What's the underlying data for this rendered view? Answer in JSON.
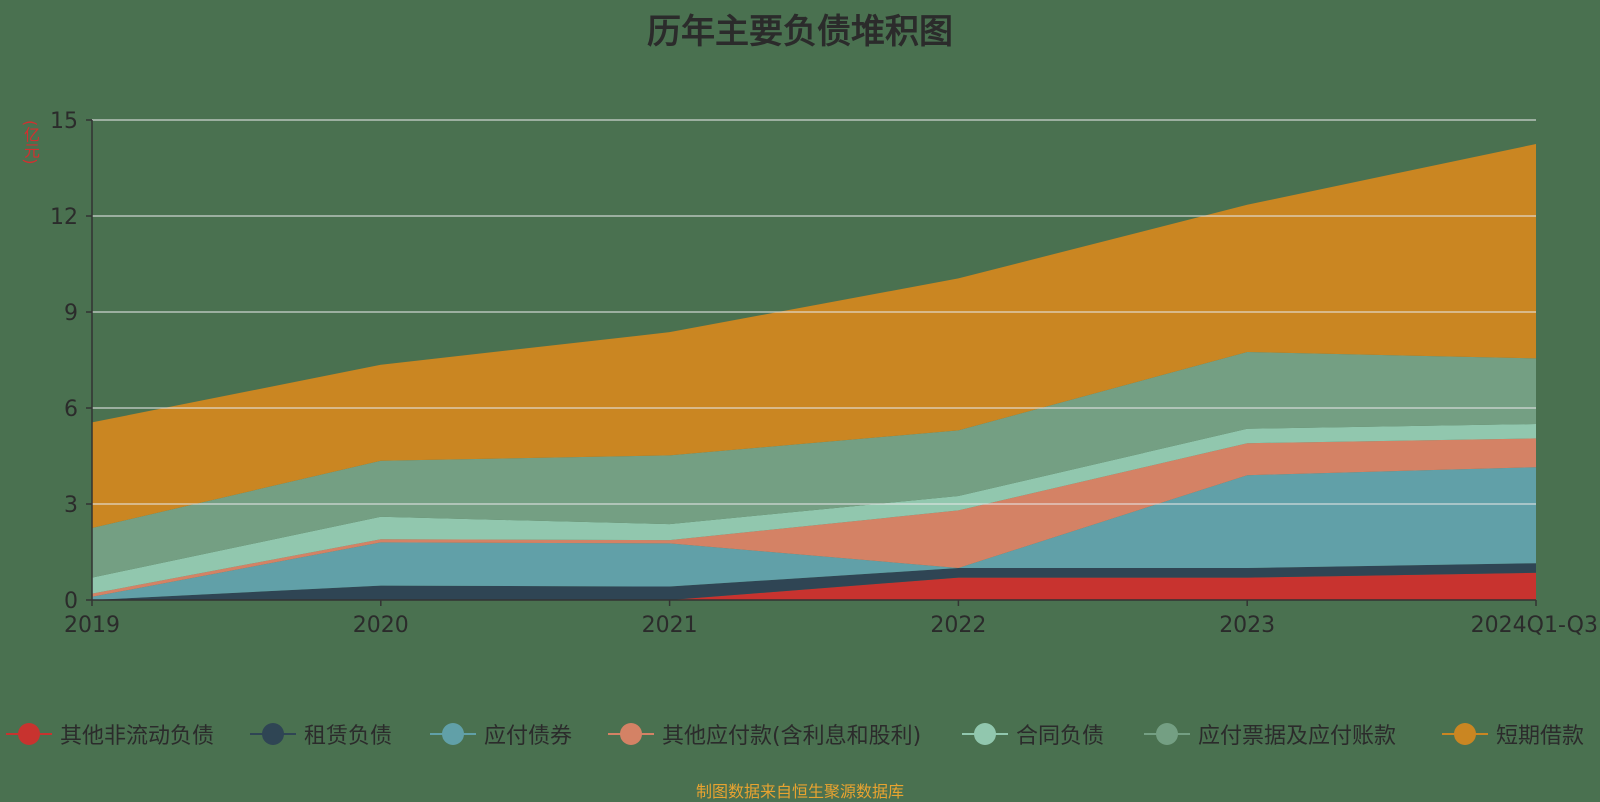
{
  "chart_data": {
    "type": "area",
    "stacked": true,
    "title": "历年主要负债堆积图",
    "ylabel": "(亿元)",
    "source": "制图数据来自恒生聚源数据库",
    "categories": [
      "2019",
      "2020",
      "2021",
      "2022",
      "2023",
      "2024Q1-Q3"
    ],
    "ylim": [
      0,
      15
    ],
    "yticks": [
      0,
      3,
      6,
      9,
      12,
      15
    ],
    "grid": true,
    "legend_position": "bottom",
    "series": [
      {
        "name": "其他非流动负债",
        "color": "#c8332f",
        "values": [
          0.0,
          0.0,
          0.0,
          0.7,
          0.7,
          0.85
        ]
      },
      {
        "name": "租赁负债",
        "color": "#2f4554",
        "values": [
          0.0,
          0.45,
          0.42,
          0.3,
          0.3,
          0.3
        ]
      },
      {
        "name": "应付债券",
        "color": "#61a0a8",
        "values": [
          0.1,
          1.35,
          1.35,
          0.0,
          2.9,
          3.0
        ]
      },
      {
        "name": "其他应付款(含利息和股利)",
        "color": "#d48265",
        "values": [
          0.1,
          0.1,
          0.1,
          1.8,
          1.0,
          0.9
        ]
      },
      {
        "name": "合同负债",
        "color": "#91c7ae",
        "values": [
          0.5,
          0.7,
          0.5,
          0.45,
          0.45,
          0.45
        ]
      },
      {
        "name": "应付票据及应付账款",
        "color": "#749f83",
        "values": [
          1.55,
          1.75,
          2.15,
          2.05,
          2.4,
          2.05
        ]
      },
      {
        "name": "短期借款",
        "color": "#ca8622",
        "values": [
          3.3,
          3.0,
          3.85,
          4.75,
          4.6,
          6.7
        ]
      }
    ]
  }
}
